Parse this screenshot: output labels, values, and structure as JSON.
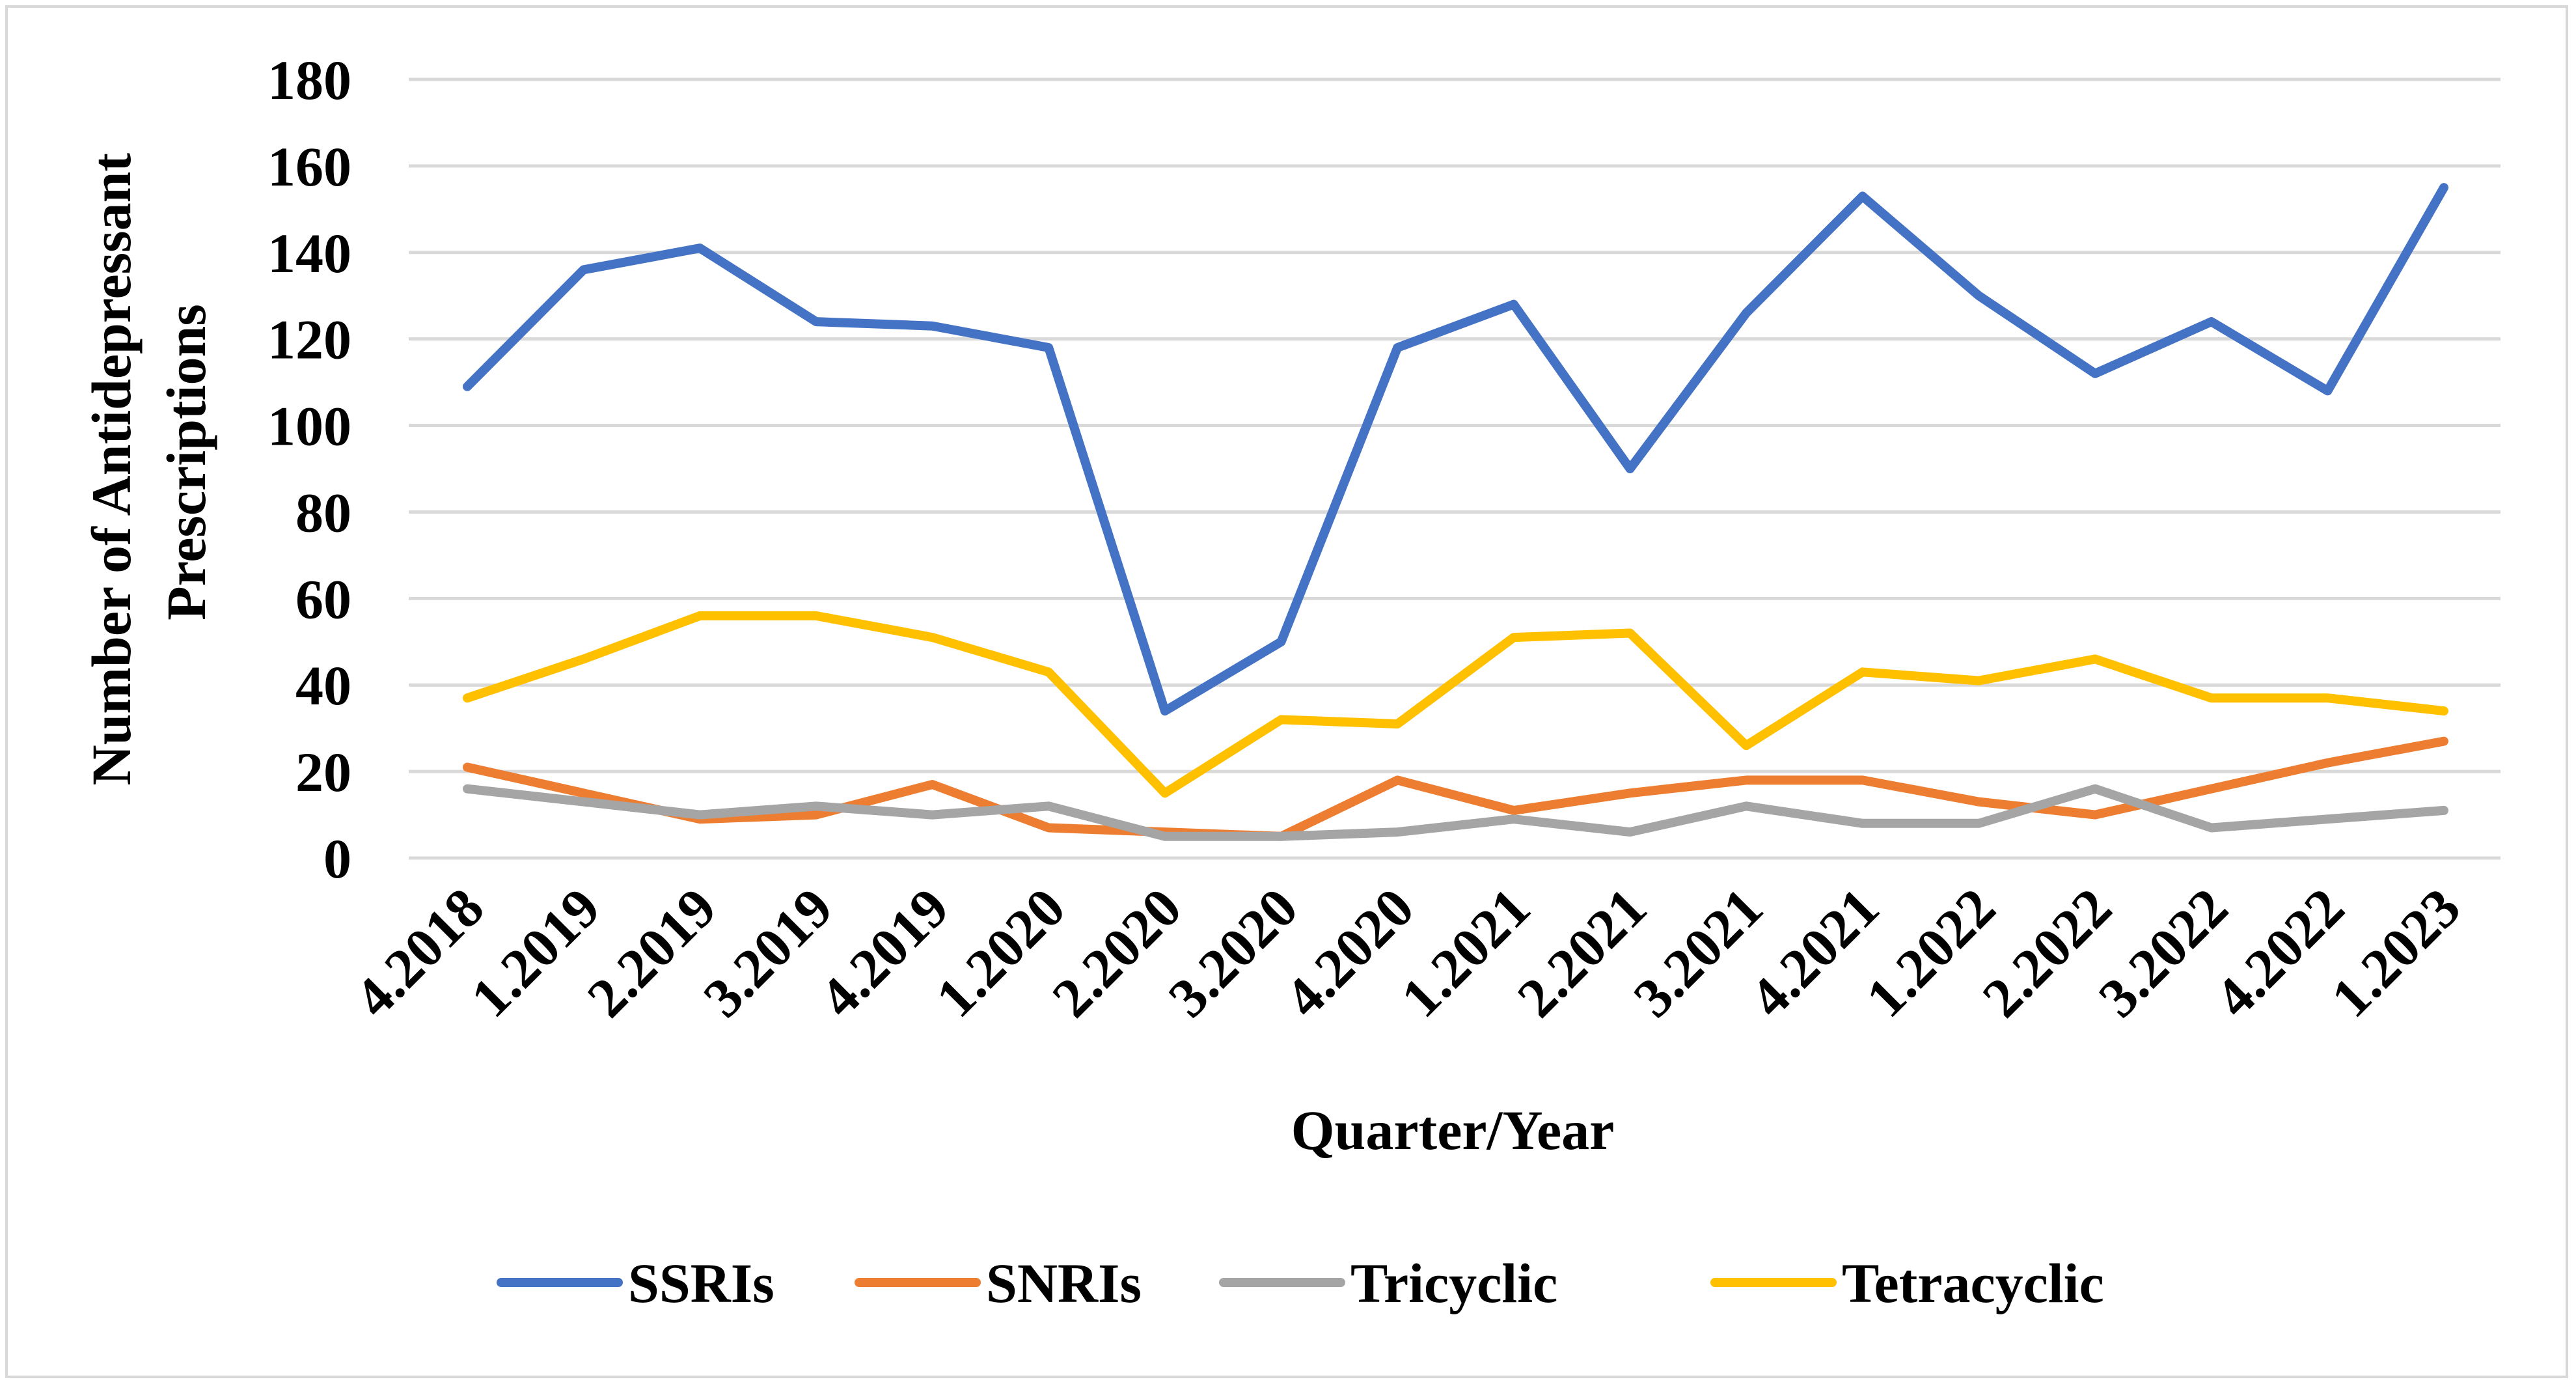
{
  "chart_data": {
    "type": "line",
    "title": "",
    "xlabel": "Quarter/Year",
    "ylabel": "Number of Antidepressant Prescriptions",
    "ylabel_lines": [
      "Number of Antidepressant",
      "Prescriptions"
    ],
    "ylim": [
      0,
      180
    ],
    "yticks": [
      0,
      20,
      40,
      60,
      80,
      100,
      120,
      140,
      160,
      180
    ],
    "grid": true,
    "legend_position": "bottom",
    "categories": [
      "4.2018",
      "1.2019",
      "2.2019",
      "3.2019",
      "4.2019",
      "1.2020",
      "2.2020",
      "3.2020",
      "4.2020",
      "1.2021",
      "2.2021",
      "3.2021",
      "4.2021",
      "1.2022",
      "2.2022",
      "3.2022",
      "4.2022",
      "1.2023"
    ],
    "series": [
      {
        "name": "SSRIs",
        "color": "#4472c4",
        "values": [
          109,
          136,
          141,
          124,
          123,
          118,
          34,
          50,
          118,
          128,
          90,
          126,
          153,
          130,
          112,
          124,
          108,
          155
        ]
      },
      {
        "name": "SNRIs",
        "color": "#ed7d31",
        "values": [
          21,
          15,
          9,
          10,
          17,
          7,
          6,
          5,
          18,
          11,
          15,
          18,
          18,
          13,
          10,
          16,
          22,
          27
        ]
      },
      {
        "name": "Tricyclic",
        "color": "#a5a5a5",
        "values": [
          16,
          13,
          10,
          12,
          10,
          12,
          5,
          5,
          6,
          9,
          6,
          12,
          8,
          8,
          16,
          7,
          9,
          11
        ]
      },
      {
        "name": "Tetracyclic",
        "color": "#ffc000",
        "values": [
          37,
          46,
          56,
          56,
          51,
          43,
          15,
          32,
          31,
          51,
          52,
          26,
          43,
          41,
          46,
          37,
          37,
          34
        ]
      }
    ]
  }
}
